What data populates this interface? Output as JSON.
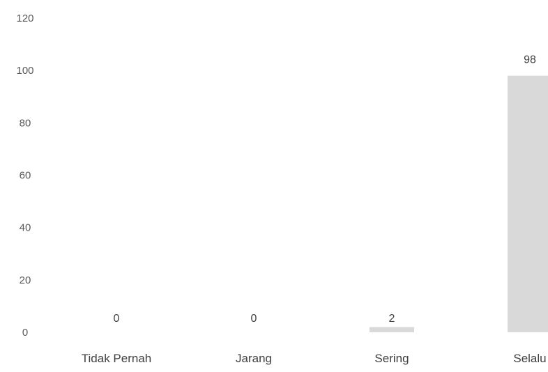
{
  "chart_data": {
    "type": "bar",
    "categories": [
      "Tidak Pernah",
      "Jarang",
      "Sering",
      "Selalu"
    ],
    "values": [
      0,
      0,
      2,
      98
    ],
    "data_labels": [
      "0",
      "0",
      "2",
      "98"
    ],
    "ylim": [
      0,
      120
    ],
    "yticks": [
      "0",
      "20",
      "40",
      "60",
      "80",
      "100",
      "120"
    ],
    "bar_color": "#d9d9d9",
    "grid": false,
    "title": "",
    "xlabel": "",
    "ylabel": ""
  }
}
